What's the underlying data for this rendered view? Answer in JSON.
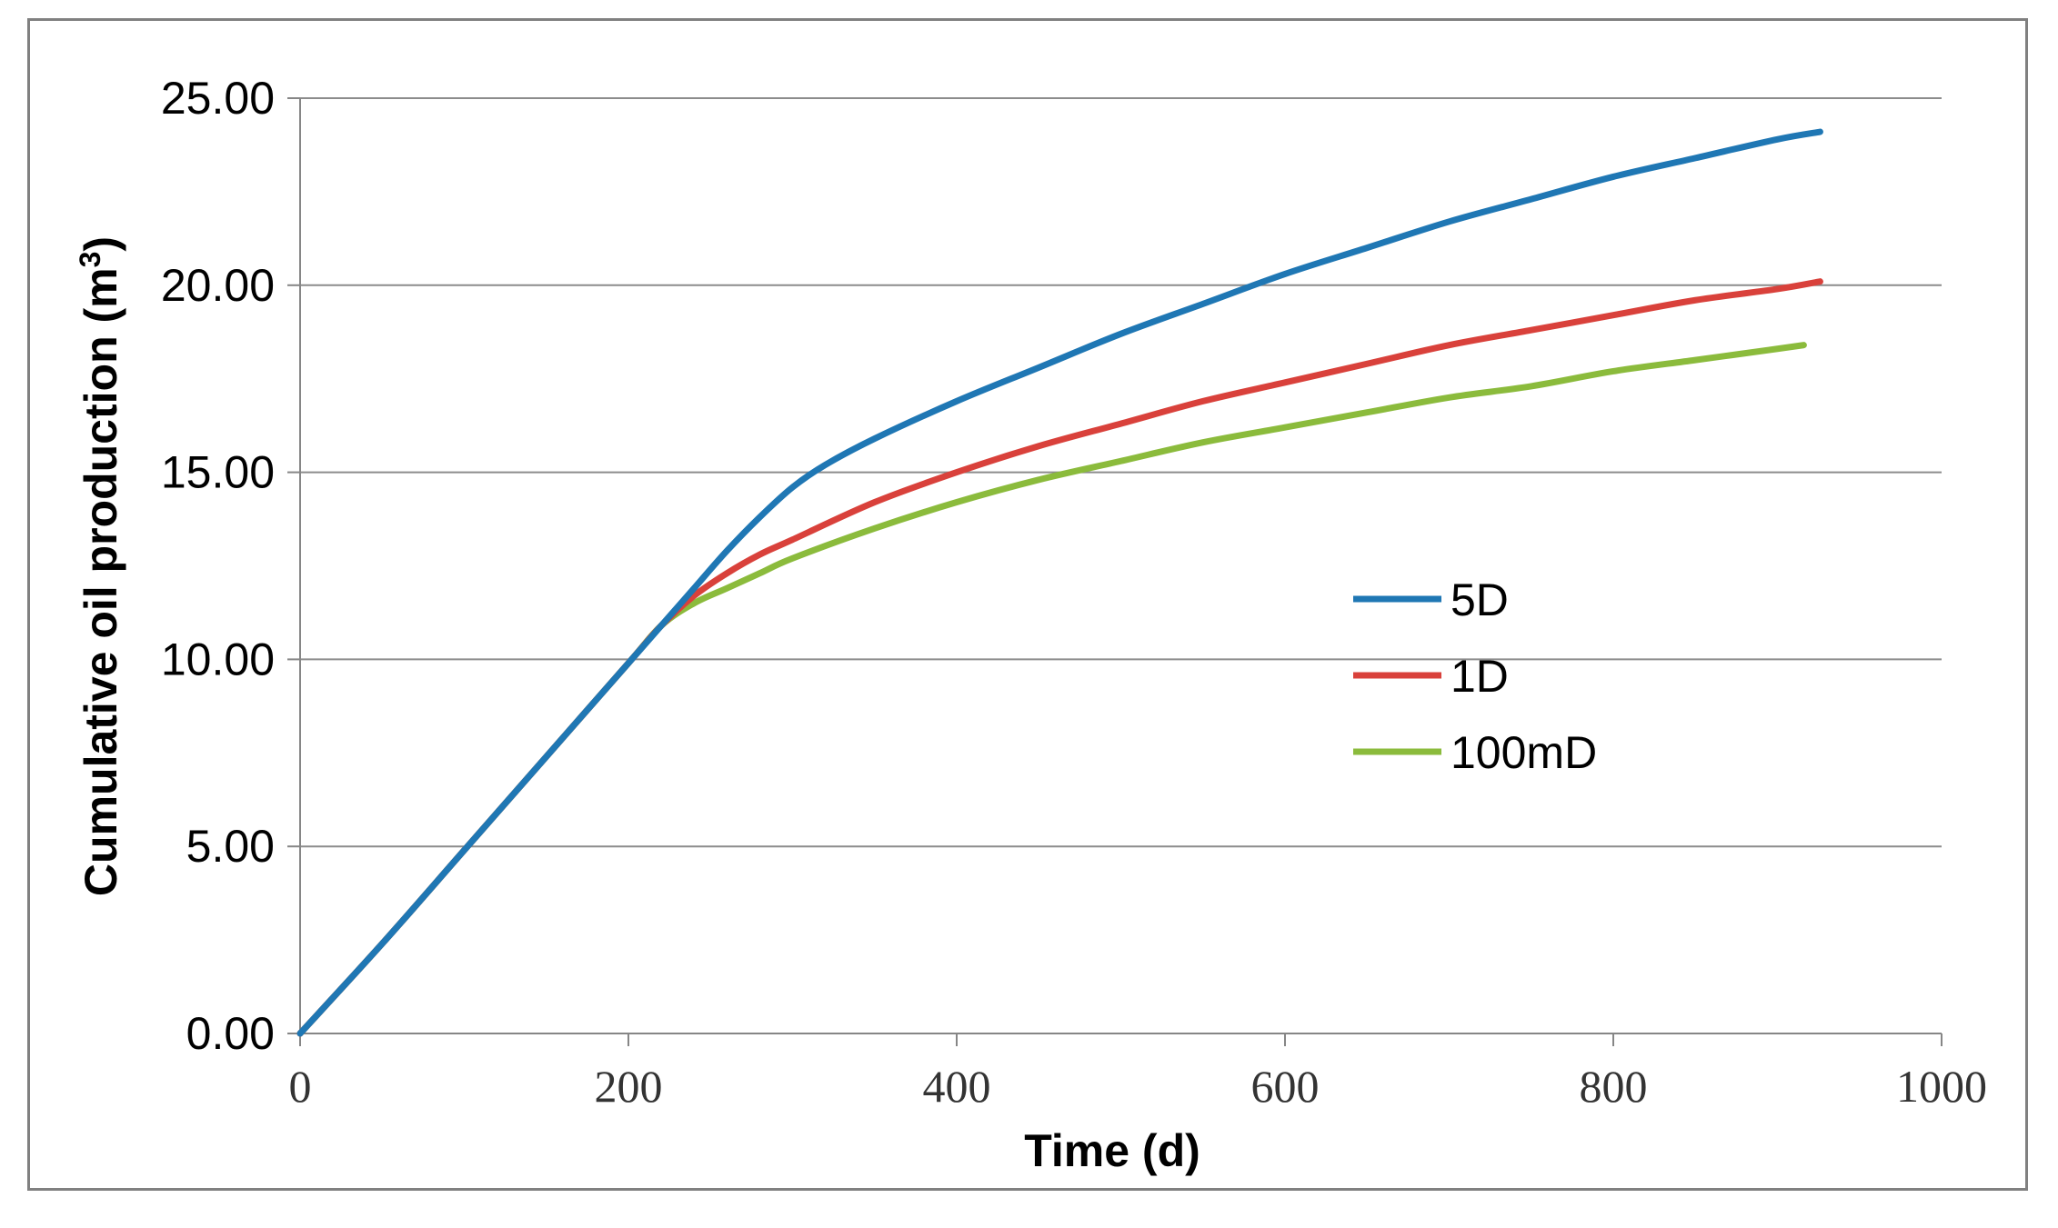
{
  "chart_data": {
    "type": "line",
    "title": "",
    "xlabel": "Time (d)",
    "ylabel_main": "Cumulative oil production (m",
    "ylabel_sup": "3",
    "ylabel_close": ")",
    "xlim": [
      0,
      1000
    ],
    "ylim": [
      0,
      25
    ],
    "xticks": [
      0,
      200,
      400,
      600,
      800,
      1000
    ],
    "xtick_labels": [
      "0",
      "200",
      "400",
      "600",
      "800",
      "1000"
    ],
    "yticks": [
      0,
      5,
      10,
      15,
      20,
      25
    ],
    "ytick_labels": [
      "0.00",
      "5.00",
      "10.00",
      "15.00",
      "20.00",
      "25.00"
    ],
    "grid": "horizontal",
    "legend_position": "center-right",
    "series": [
      {
        "name": "5D",
        "color": "#1f77b4",
        "x": [
          0,
          50,
          100,
          150,
          200,
          220,
          240,
          260,
          280,
          300,
          320,
          350,
          400,
          450,
          500,
          550,
          600,
          650,
          700,
          750,
          800,
          850,
          900,
          926
        ],
        "y": [
          0,
          2.4,
          4.9,
          7.4,
          9.9,
          10.9,
          11.9,
          12.9,
          13.8,
          14.6,
          15.2,
          15.9,
          16.9,
          17.8,
          18.7,
          19.5,
          20.3,
          21.0,
          21.7,
          22.3,
          22.9,
          23.4,
          23.9,
          24.1
        ]
      },
      {
        "name": "1D",
        "color": "#d9413b",
        "x": [
          0,
          50,
          100,
          150,
          200,
          220,
          240,
          260,
          280,
          300,
          350,
          400,
          450,
          500,
          550,
          600,
          650,
          700,
          750,
          800,
          850,
          900,
          926
        ],
        "y": [
          0,
          2.4,
          4.9,
          7.4,
          9.9,
          10.9,
          11.7,
          12.3,
          12.8,
          13.2,
          14.2,
          15.0,
          15.7,
          16.3,
          16.9,
          17.4,
          17.9,
          18.4,
          18.8,
          19.2,
          19.6,
          19.9,
          20.1
        ]
      },
      {
        "name": "100mD",
        "color": "#8bbb3c",
        "x": [
          0,
          50,
          100,
          150,
          200,
          220,
          240,
          260,
          280,
          300,
          350,
          400,
          450,
          500,
          550,
          600,
          650,
          700,
          750,
          800,
          850,
          900,
          916
        ],
        "y": [
          0,
          2.4,
          4.9,
          7.4,
          9.9,
          10.9,
          11.5,
          11.9,
          12.3,
          12.7,
          13.5,
          14.2,
          14.8,
          15.3,
          15.8,
          16.2,
          16.6,
          17.0,
          17.3,
          17.7,
          18.0,
          18.3,
          18.4
        ]
      }
    ]
  }
}
